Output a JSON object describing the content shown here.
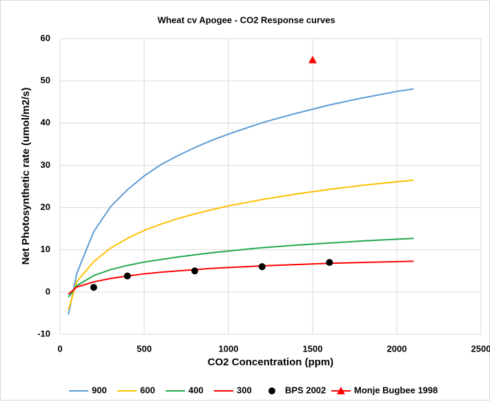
{
  "chart_data": {
    "type": "line",
    "title": "Wheat cv Apogee - CO2 Response curves",
    "x_label": "CO2 Concentration (ppm)",
    "y_label": "Net Photosynthetic rate (umol/m2/s)",
    "xlim": [
      0,
      2500
    ],
    "xticks": [
      0,
      500,
      1000,
      1500,
      2000,
      2500
    ],
    "ylim": [
      -10,
      60
    ],
    "yticks": [
      -10,
      0,
      10,
      20,
      30,
      40,
      50,
      60
    ],
    "grid": true,
    "legend": "bottom",
    "series": [
      {
        "name": "900",
        "color": "#5b9bd5",
        "mode": "line",
        "x": [
          50,
          100,
          200,
          300,
          400,
          500,
          600,
          700,
          800,
          900,
          1000,
          1200,
          1400,
          1600,
          1800,
          2000,
          2100
        ],
        "values": [
          -5.3,
          4.5,
          14.3,
          20.2,
          24.2,
          27.5,
          30.2,
          32.3,
          34.2,
          35.9,
          37.4,
          40.1,
          42.3,
          44.3,
          46.0,
          47.5,
          48.1
        ]
      },
      {
        "name": "600",
        "color": "#ffc000",
        "mode": "line",
        "x": [
          50,
          100,
          200,
          300,
          400,
          500,
          600,
          700,
          800,
          900,
          1000,
          1200,
          1400,
          1600,
          1800,
          2000,
          2100
        ],
        "values": [
          -4.2,
          2.5,
          7.2,
          10.4,
          12.7,
          14.6,
          16.1,
          17.4,
          18.5,
          19.5,
          20.4,
          21.9,
          23.2,
          24.3,
          25.3,
          26.1,
          26.5
        ]
      },
      {
        "name": "400",
        "color": "#21a84f",
        "mode": "line",
        "x": [
          50,
          100,
          200,
          300,
          400,
          500,
          600,
          700,
          800,
          900,
          1000,
          1200,
          1400,
          1600,
          1800,
          2000,
          2100
        ],
        "values": [
          -1.2,
          1.5,
          3.9,
          5.3,
          6.3,
          7.1,
          7.7,
          8.3,
          8.8,
          9.3,
          9.7,
          10.5,
          11.1,
          11.6,
          12.1,
          12.5,
          12.7
        ]
      },
      {
        "name": "300",
        "color": "#ff0000",
        "mode": "line",
        "x": [
          50,
          100,
          200,
          300,
          400,
          500,
          600,
          700,
          800,
          900,
          1000,
          1200,
          1400,
          1600,
          1800,
          2000,
          2100
        ],
        "values": [
          -0.5,
          1.2,
          2.4,
          3.2,
          3.8,
          4.3,
          4.7,
          5.0,
          5.3,
          5.6,
          5.8,
          6.2,
          6.5,
          6.8,
          7.0,
          7.2,
          7.3
        ]
      },
      {
        "name": "BPS 2002",
        "color": "#000000",
        "mode": "marker",
        "marker": "circle",
        "x": [
          200,
          400,
          800,
          1200,
          1600
        ],
        "values": [
          1.1,
          3.8,
          5.0,
          6.0,
          7.0
        ]
      },
      {
        "name": "Monje Bugbee 1998",
        "color": "#ff0000",
        "mode": "marker",
        "marker": "triangle",
        "x": [
          1500
        ],
        "values": [
          55
        ]
      }
    ]
  }
}
